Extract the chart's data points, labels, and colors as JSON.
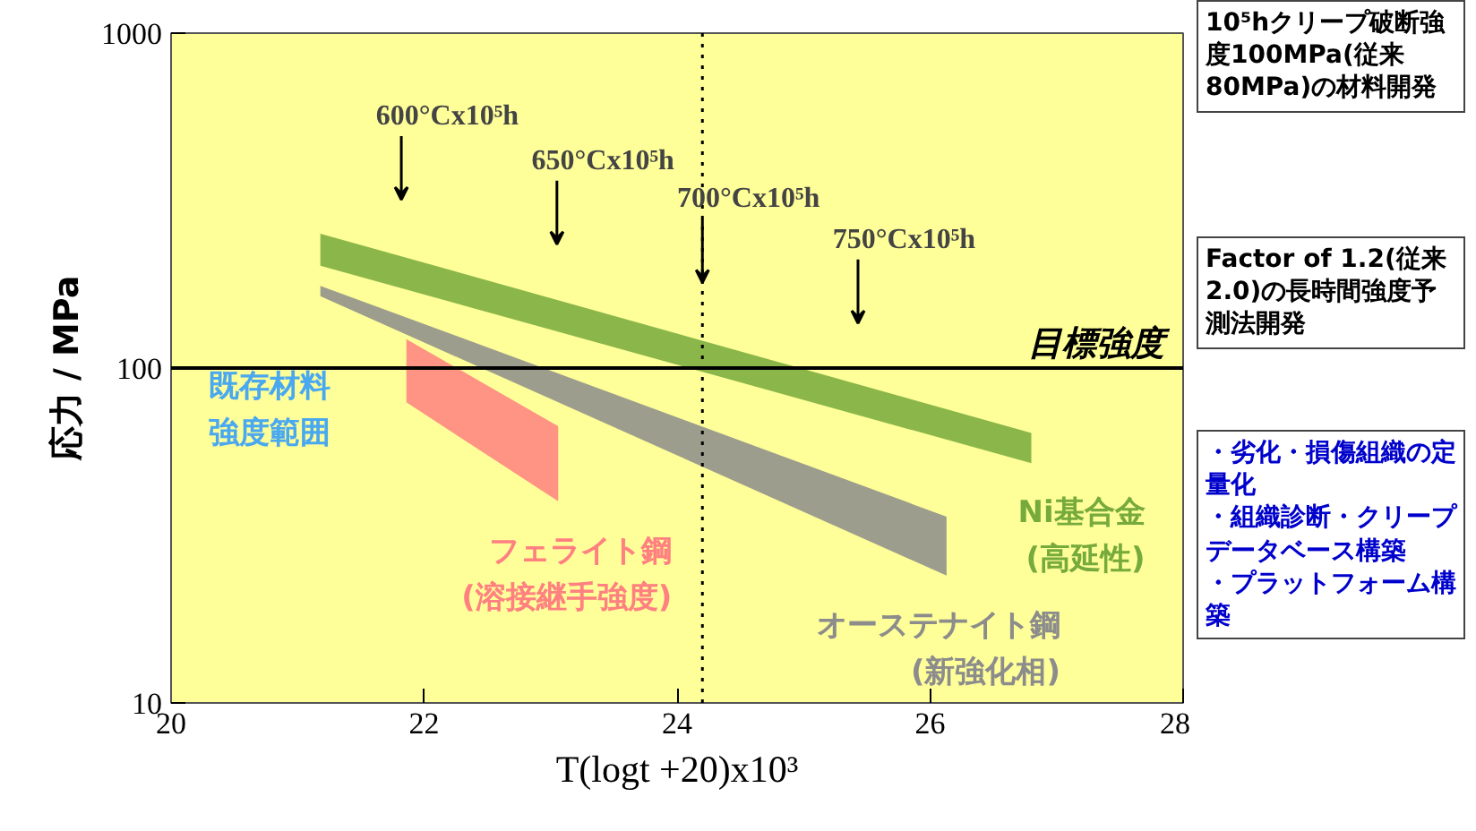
{
  "chart_data": {
    "type": "area",
    "xlabel": "T(logt +20)x10³",
    "ylabel": "応力 / MPa",
    "xlim": [
      20,
      28
    ],
    "ylim": [
      10,
      1000
    ],
    "xticks": [
      20,
      22,
      24,
      26,
      28
    ],
    "yticks": [
      10,
      100,
      1000
    ],
    "log": "y",
    "grid": false,
    "series": [
      {
        "name": "オーステナイト鋼\n(新強化相)",
        "color": "#8c8c8c",
        "x": [
          21.18,
          26.13,
          26.13,
          21.18
        ],
        "values": [
          176,
          36,
          24,
          164
        ]
      },
      {
        "name": "Ni基合金\n(高延性)",
        "color": "#77aa3c",
        "x": [
          21.18,
          26.8,
          26.8,
          21.18
        ],
        "values": [
          252,
          64,
          52,
          202
        ]
      },
      {
        "name": "フェライト鋼\n(溶接継手強度)",
        "color": "#ff8080",
        "x": [
          21.86,
          23.06,
          23.06,
          21.86
        ],
        "values": [
          122,
          67,
          40,
          79
        ]
      }
    ],
    "ref_lines": [
      {
        "axis": "y",
        "value": 100,
        "label": "目標強度",
        "color": "#000000",
        "line_style": "solid"
      },
      {
        "axis": "x",
        "value": 24.2,
        "label": null,
        "color": "#000000",
        "line_style": "dotted"
      }
    ],
    "annotations": [
      "600°Cx10⁵h",
      "650°Cx10⁵h",
      {
        "text": "700°Cx10⁵h",
        "x": 24.2,
        "y": 180
      },
      "750°Cx10⁵h",
      "既存材料強度範囲",
      "10⁵hクリープ破断強度100MPa(従来80MPa)の材料開発",
      "Factor of 1.2(従来2.0)の長時間強度予測法開発",
      "・劣化・損傷組織の定量化",
      "・組織診断・クリープデータベース構築",
      "・プラットフォーム構築"
    ]
  }
}
